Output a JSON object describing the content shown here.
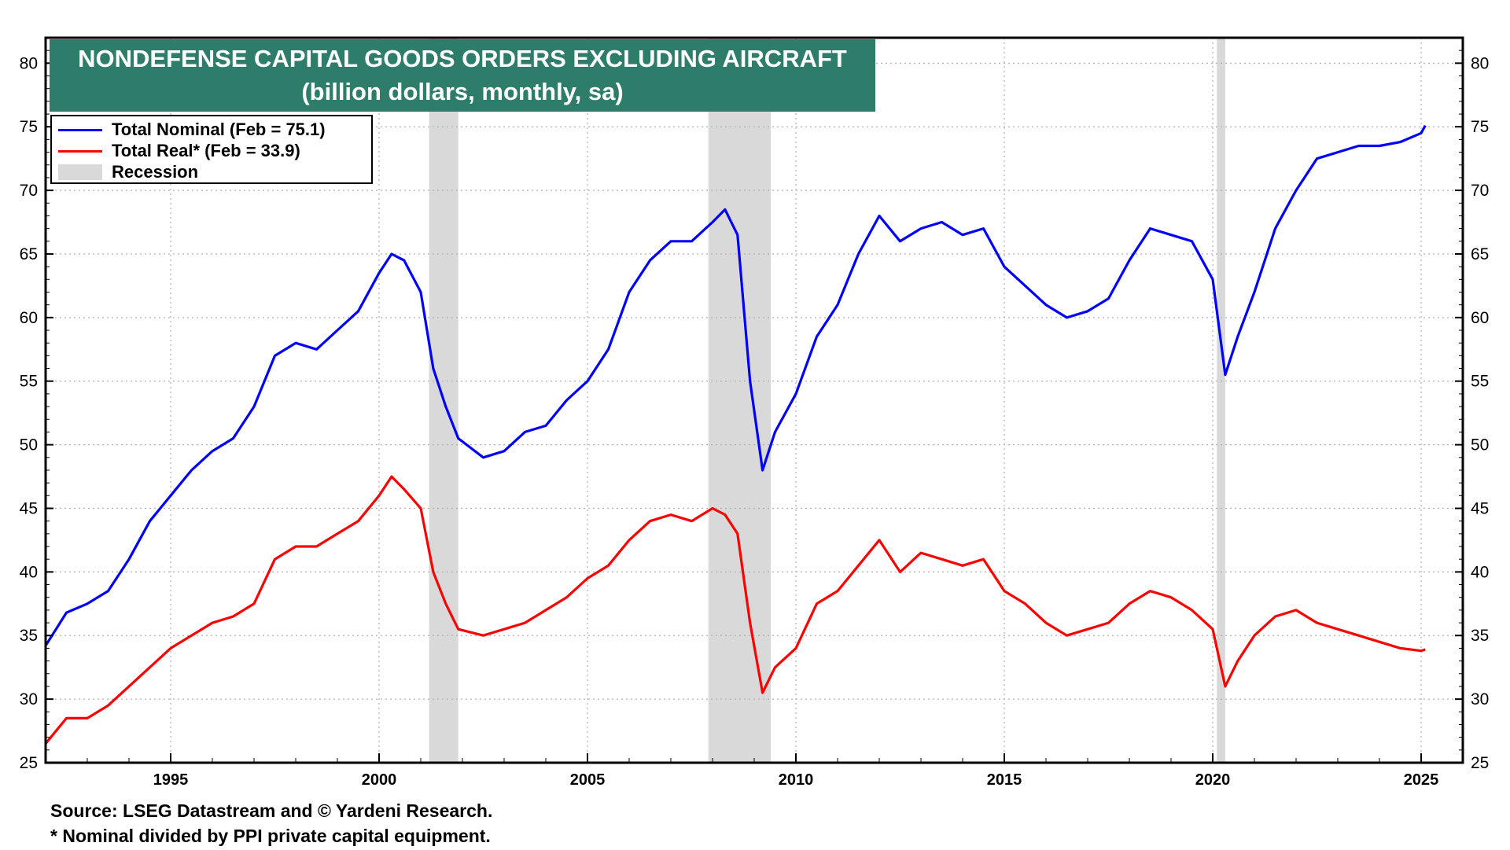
{
  "title_line1": "NONDEFENSE CAPITAL GOODS ORDERS EXCLUDING AIRCRAFT",
  "title_line2": "(billion dollars, monthly, sa)",
  "legend": {
    "nominal": "Total Nominal (Feb = 75.1)",
    "real": "Total Real* (Feb = 33.9)",
    "recession": "Recession"
  },
  "footnotes": {
    "source": "Source: LSEG Datastream and © Yardeni Research.",
    "note": "* Nominal divided by PPI private capital equipment."
  },
  "colors": {
    "title_bg": "#2e7d6b",
    "nominal": "#0000ff",
    "real": "#ff0000",
    "recession": "#d9d9d9"
  },
  "chart_data": {
    "type": "line",
    "title": "NONDEFENSE CAPITAL GOODS ORDERS EXCLUDING AIRCRAFT",
    "subtitle": "(billion dollars, monthly, sa)",
    "xlim": [
      1992.0,
      2026.0
    ],
    "ylim": [
      25,
      82
    ],
    "y_ticks": [
      25,
      30,
      35,
      40,
      45,
      50,
      55,
      60,
      65,
      70,
      75,
      80
    ],
    "x_ticks": [
      1995,
      2000,
      2005,
      2010,
      2015,
      2020,
      2025
    ],
    "grid": true,
    "legend_position": "top-left",
    "recessions": [
      [
        2001.2,
        2001.9
      ],
      [
        2007.9,
        2009.4
      ],
      [
        2020.1,
        2020.3
      ]
    ],
    "series": [
      {
        "name": "Total Nominal (Feb = 75.1)",
        "x": [
          1992.0,
          1992.5,
          1993.0,
          1993.5,
          1994.0,
          1994.5,
          1995.0,
          1995.5,
          1996.0,
          1996.5,
          1997.0,
          1997.5,
          1998.0,
          1998.5,
          1999.0,
          1999.5,
          2000.0,
          2000.3,
          2000.6,
          2001.0,
          2001.3,
          2001.6,
          2001.9,
          2002.5,
          2003.0,
          2003.5,
          2004.0,
          2004.5,
          2005.0,
          2005.5,
          2006.0,
          2006.5,
          2007.0,
          2007.5,
          2008.0,
          2008.3,
          2008.6,
          2008.9,
          2009.2,
          2009.5,
          2010.0,
          2010.5,
          2011.0,
          2011.5,
          2012.0,
          2012.5,
          2013.0,
          2013.5,
          2014.0,
          2014.5,
          2015.0,
          2015.5,
          2016.0,
          2016.5,
          2017.0,
          2017.5,
          2018.0,
          2018.5,
          2019.0,
          2019.5,
          2020.0,
          2020.3,
          2020.6,
          2021.0,
          2021.5,
          2022.0,
          2022.5,
          2023.0,
          2023.5,
          2024.0,
          2024.5,
          2025.0,
          2025.1
        ],
        "values": [
          34.2,
          36.8,
          37.5,
          38.5,
          41.0,
          44.0,
          46.0,
          48.0,
          49.5,
          50.5,
          53.0,
          57.0,
          58.0,
          57.5,
          59.0,
          60.5,
          63.5,
          65.0,
          64.5,
          62.0,
          56.0,
          53.0,
          50.5,
          49.0,
          49.5,
          51.0,
          51.5,
          53.5,
          55.0,
          57.5,
          62.0,
          64.5,
          66.0,
          66.0,
          67.5,
          68.5,
          66.5,
          55.0,
          48.0,
          51.0,
          54.0,
          58.5,
          61.0,
          65.0,
          68.0,
          66.0,
          67.0,
          67.5,
          66.5,
          67.0,
          64.0,
          62.5,
          61.0,
          60.0,
          60.5,
          61.5,
          64.5,
          67.0,
          66.5,
          66.0,
          63.0,
          55.5,
          58.5,
          62.0,
          67.0,
          70.0,
          72.5,
          73.0,
          73.5,
          73.5,
          73.8,
          74.5,
          75.1
        ]
      },
      {
        "name": "Total Real* (Feb = 33.9)",
        "x": [
          1992.0,
          1992.5,
          1993.0,
          1993.5,
          1994.0,
          1994.5,
          1995.0,
          1995.5,
          1996.0,
          1996.5,
          1997.0,
          1997.5,
          1998.0,
          1998.5,
          1999.0,
          1999.5,
          2000.0,
          2000.3,
          2000.6,
          2001.0,
          2001.3,
          2001.6,
          2001.9,
          2002.5,
          2003.0,
          2003.5,
          2004.0,
          2004.5,
          2005.0,
          2005.5,
          2006.0,
          2006.5,
          2007.0,
          2007.5,
          2008.0,
          2008.3,
          2008.6,
          2008.9,
          2009.2,
          2009.5,
          2010.0,
          2010.5,
          2011.0,
          2011.5,
          2012.0,
          2012.5,
          2013.0,
          2013.5,
          2014.0,
          2014.5,
          2015.0,
          2015.5,
          2016.0,
          2016.5,
          2017.0,
          2017.5,
          2018.0,
          2018.5,
          2019.0,
          2019.5,
          2020.0,
          2020.3,
          2020.6,
          2021.0,
          2021.5,
          2022.0,
          2022.5,
          2023.0,
          2023.5,
          2024.0,
          2024.5,
          2025.0,
          2025.1
        ],
        "values": [
          26.5,
          28.5,
          28.5,
          29.5,
          31.0,
          32.5,
          34.0,
          35.0,
          36.0,
          36.5,
          37.5,
          41.0,
          42.0,
          42.0,
          43.0,
          44.0,
          46.0,
          47.5,
          46.5,
          45.0,
          40.0,
          37.5,
          35.5,
          35.0,
          35.5,
          36.0,
          37.0,
          38.0,
          39.5,
          40.5,
          42.5,
          44.0,
          44.5,
          44.0,
          45.0,
          44.5,
          43.0,
          36.0,
          30.5,
          32.5,
          34.0,
          37.5,
          38.5,
          40.5,
          42.5,
          40.0,
          41.5,
          41.0,
          40.5,
          41.0,
          38.5,
          37.5,
          36.0,
          35.0,
          35.5,
          36.0,
          37.5,
          38.5,
          38.0,
          37.0,
          35.5,
          31.0,
          33.0,
          35.0,
          36.5,
          37.0,
          36.0,
          35.5,
          35.0,
          34.5,
          34.0,
          33.8,
          33.9
        ]
      }
    ]
  }
}
